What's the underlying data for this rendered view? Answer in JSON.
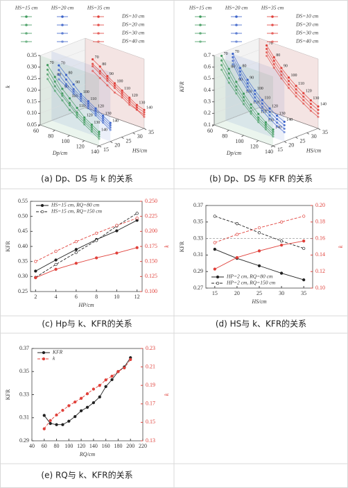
{
  "chart_data": [
    {
      "type": "scatter3d",
      "caption": "(a) Dp、DS 与 k 的关系",
      "zlabel": "k",
      "xlabel": "Dp/cm",
      "ylabel": "HS/cm",
      "xlim": [
        60,
        140
      ],
      "xticks": [
        60,
        80,
        100,
        120,
        140
      ],
      "ylim": [
        15,
        35
      ],
      "yticks": [
        15,
        20,
        25,
        30,
        35
      ],
      "zlim": [
        0.05,
        0.35
      ],
      "zticks": [
        0.05,
        {
          "value": 0.1,
          "label": "0.10"
        },
        0.15,
        {
          "value": 0.2,
          "label": "0.20"
        },
        0.25,
        {
          "value": 0.3,
          "label": "0.30"
        },
        0.35
      ],
      "x": [
        70,
        80,
        90,
        100,
        110,
        120,
        130,
        140
      ],
      "row_names": [
        "DS=10 cm",
        "DS=20 cm",
        "DS=30 cm",
        "DS=40 cm"
      ],
      "groups": [
        {
          "name": "HS=15 cm",
          "hs": 15,
          "color": "#3e9a5c",
          "values": [
            [
              0.32,
              0.28,
              0.24,
              0.21,
              0.18,
              0.15,
              0.13,
              0.11
            ],
            [
              0.3,
              0.26,
              0.22,
              0.19,
              0.16,
              0.14,
              0.12,
              0.1
            ],
            [
              0.28,
              0.24,
              0.21,
              0.18,
              0.15,
              0.13,
              0.11,
              0.09
            ],
            [
              0.26,
              0.22,
              0.19,
              0.16,
              0.14,
              0.12,
              0.1,
              0.08
            ]
          ]
        },
        {
          "name": "HS=20 cm",
          "hs": 20,
          "color": "#3b63c9",
          "values": [
            [
              0.3,
              0.27,
              0.24,
              0.21,
              0.19,
              0.17,
              0.15,
              0.13
            ],
            [
              0.28,
              0.25,
              0.22,
              0.2,
              0.18,
              0.16,
              0.14,
              0.12
            ],
            [
              0.26,
              0.23,
              0.21,
              0.19,
              0.17,
              0.15,
              0.13,
              0.11
            ],
            [
              0.24,
              0.22,
              0.2,
              0.18,
              0.16,
              0.14,
              0.12,
              0.1
            ]
          ]
        },
        {
          "name": "HS=35 cm",
          "hs": 35,
          "color": "#e0403a",
          "values": [
            [
              0.27,
              0.25,
              0.22,
              0.2,
              0.18,
              0.16,
              0.14,
              0.13
            ],
            [
              0.25,
              0.23,
              0.21,
              0.19,
              0.17,
              0.15,
              0.13,
              0.12
            ],
            [
              0.24,
              0.22,
              0.2,
              0.18,
              0.16,
              0.14,
              0.12,
              0.11
            ],
            [
              0.22,
              0.2,
              0.18,
              0.16,
              0.15,
              0.13,
              0.12,
              0.1
            ]
          ]
        }
      ]
    },
    {
      "type": "scatter3d",
      "caption": "(b) Dp、DS 与 KFR 的关系",
      "zlabel": "KFR",
      "xlabel": "Dp/cm",
      "ylabel": "HS/cm",
      "xlim": [
        60,
        140
      ],
      "xticks": [
        60,
        80,
        100,
        120,
        140
      ],
      "ylim": [
        15,
        35
      ],
      "yticks": [
        15,
        20,
        25,
        30,
        35
      ],
      "zlim": [
        0.1,
        0.7
      ],
      "zticks": [
        0.1,
        0.2,
        0.3,
        0.4,
        0.5,
        0.6,
        0.7
      ],
      "x": [
        70,
        80,
        90,
        100,
        110,
        120,
        130,
        140
      ],
      "row_names": [
        "DS=10 cm",
        "DS=20 cm",
        "DS=30 cm",
        "DS=40 cm"
      ],
      "groups": [
        {
          "name": "HS=15 cm",
          "hs": 15,
          "color": "#3e9a5c",
          "values": [
            [
              0.72,
              0.63,
              0.54,
              0.46,
              0.39,
              0.33,
              0.28,
              0.24
            ],
            [
              0.68,
              0.59,
              0.5,
              0.43,
              0.36,
              0.3,
              0.26,
              0.22
            ],
            [
              0.64,
              0.55,
              0.47,
              0.4,
              0.33,
              0.28,
              0.24,
              0.2
            ],
            [
              0.6,
              0.51,
              0.44,
              0.37,
              0.31,
              0.26,
              0.22,
              0.18
            ]
          ]
        },
        {
          "name": "HS=20 cm",
          "hs": 20,
          "color": "#3b63c9",
          "values": [
            [
              0.7,
              0.6,
              0.52,
              0.45,
              0.39,
              0.34,
              0.3,
              0.27
            ],
            [
              0.67,
              0.57,
              0.49,
              0.42,
              0.36,
              0.31,
              0.27,
              0.24
            ],
            [
              0.64,
              0.54,
              0.46,
              0.39,
              0.33,
              0.28,
              0.24,
              0.21
            ],
            [
              0.61,
              0.51,
              0.43,
              0.36,
              0.3,
              0.25,
              0.21,
              0.18
            ]
          ]
        },
        {
          "name": "HS=35 cm",
          "hs": 35,
          "color": "#e0403a",
          "values": [
            [
              0.66,
              0.58,
              0.51,
              0.45,
              0.4,
              0.36,
              0.32,
              0.29
            ],
            [
              0.63,
              0.55,
              0.48,
              0.42,
              0.37,
              0.33,
              0.29,
              0.26
            ],
            [
              0.6,
              0.52,
              0.45,
              0.39,
              0.34,
              0.3,
              0.26,
              0.23
            ],
            [
              0.57,
              0.49,
              0.42,
              0.36,
              0.31,
              0.27,
              0.23,
              0.2
            ]
          ]
        }
      ]
    },
    {
      "type": "line",
      "caption": "(c) Hp与 k、KFR的关系",
      "xlabel": "HP/cm",
      "ylabel": "KFR",
      "y2label": "k",
      "legend": "upper left",
      "x": [
        2,
        4,
        6,
        8,
        10,
        12
      ],
      "xlim": [
        1.5,
        12.5
      ],
      "xticks": [
        2,
        4,
        6,
        8,
        10,
        12
      ],
      "ylim": [
        0.25,
        0.55
      ],
      "yticks": [
        0.25,
        {
          "value": 0.3,
          "label": "0.30"
        },
        0.35,
        {
          "value": 0.4,
          "label": "0.40"
        },
        0.45,
        {
          "value": 0.5,
          "label": "0.50"
        },
        0.55
      ],
      "y2lim": [
        0.1,
        0.25
      ],
      "y2ticks": [
        {
          "value": 0.1,
          "label": "0.100"
        },
        0.125,
        {
          "value": 0.15,
          "label": "0.150"
        },
        0.175,
        {
          "value": 0.2,
          "label": "0.200"
        },
        0.225,
        {
          "value": 0.25,
          "label": "0.250"
        }
      ],
      "series": [
        {
          "name": "HS=15 cm, RQ=80 cm",
          "color": "#222222",
          "marker": "filled",
          "values": [
            0.318,
            0.355,
            0.39,
            0.423,
            0.452,
            0.487
          ]
        },
        {
          "name": "HS=15 cm, RQ=150 cm",
          "color": "#222222",
          "marker": "open",
          "dash": true,
          "values": [
            0.297,
            0.34,
            0.38,
            0.42,
            0.468,
            0.51
          ]
        },
        {
          "color": "#e0403a",
          "marker": "filled",
          "axis": "y2",
          "values": [
            0.123,
            0.137,
            0.147,
            0.156,
            0.164,
            0.173
          ]
        },
        {
          "color": "#e0403a",
          "marker": "open",
          "dash": true,
          "axis": "y2",
          "values": [
            0.15,
            0.167,
            0.183,
            0.197,
            0.21,
            0.222
          ]
        }
      ]
    },
    {
      "type": "line",
      "caption": "(d) HS与 k、KFR的关系",
      "xlabel": "HS/cm",
      "ylabel": "KFR",
      "y2label": "k",
      "legend": "lower left",
      "hline": 0.33,
      "x": [
        15,
        20,
        25,
        30,
        35
      ],
      "xlim": [
        13,
        37
      ],
      "xticks": [
        15,
        20,
        25,
        30,
        35
      ],
      "ylim": [
        0.27,
        0.37
      ],
      "yticks": [
        0.27,
        0.29,
        0.31,
        0.33,
        0.35,
        0.37
      ],
      "y2lim": [
        0.1,
        0.2
      ],
      "y2ticks": [
        {
          "value": 0.1,
          "label": "0.10"
        },
        0.12,
        0.14,
        0.16,
        0.18,
        {
          "value": 0.2,
          "label": "0.20"
        }
      ],
      "series": [
        {
          "name": "HP=2 cm, RQ=80 cm",
          "color": "#222222",
          "marker": "filled",
          "values": [
            0.317,
            0.306,
            0.297,
            0.288,
            0.28
          ]
        },
        {
          "name": "HP=2 cm, RQ=150 cm",
          "color": "#222222",
          "marker": "open",
          "dash": true,
          "values": [
            0.357,
            0.348,
            0.337,
            0.327,
            0.318
          ]
        },
        {
          "color": "#e0403a",
          "marker": "filled",
          "axis": "y2",
          "values": [
            0.123,
            0.137,
            0.145,
            0.152,
            0.157
          ]
        },
        {
          "color": "#e0403a",
          "marker": "open",
          "dash": true,
          "axis": "y2",
          "values": [
            0.155,
            0.165,
            0.173,
            0.18,
            0.187
          ]
        }
      ]
    },
    {
      "type": "line",
      "caption": "(e) RQ与 k、KFR的关系",
      "xlabel": "RQ/cm",
      "ylabel": "KFR",
      "y2label": "k",
      "legend": "upper left",
      "x": [
        60,
        70,
        80,
        90,
        100,
        110,
        120,
        130,
        140,
        150,
        160,
        170,
        180,
        190,
        200
      ],
      "xlim": [
        40,
        220
      ],
      "xticks": [
        40,
        60,
        80,
        100,
        120,
        140,
        160,
        180,
        200,
        220
      ],
      "ylim": [
        0.29,
        0.37
      ],
      "yticks": [
        0.29,
        0.31,
        0.33,
        0.35,
        0.37
      ],
      "y2lim": [
        0.13,
        0.23
      ],
      "y2ticks": [
        0.13,
        0.15,
        0.17,
        0.19,
        0.21,
        0.23
      ],
      "series": [
        {
          "name": "KFR",
          "color": "#222222",
          "marker": "filled",
          "values": [
            0.312,
            0.305,
            0.304,
            0.304,
            0.307,
            0.311,
            0.316,
            0.319,
            0.323,
            0.328,
            0.337,
            0.343,
            0.35,
            0.354,
            0.362
          ]
        },
        {
          "name": "k",
          "color": "#e0403a",
          "marker": "filled",
          "dash": true,
          "axis": "y2",
          "values": [
            0.143,
            0.152,
            0.158,
            0.163,
            0.168,
            0.172,
            0.176,
            0.181,
            0.186,
            0.19,
            0.196,
            0.2,
            0.205,
            0.209,
            0.218
          ]
        }
      ]
    }
  ]
}
